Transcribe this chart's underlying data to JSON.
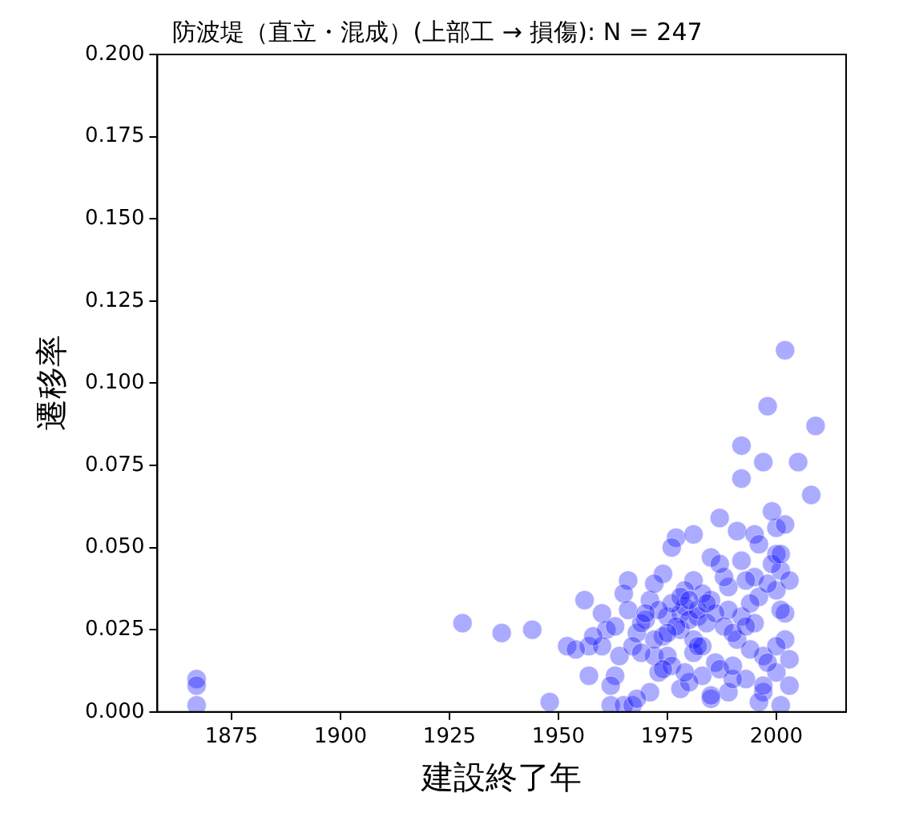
{
  "chart_data": {
    "type": "scatter",
    "title": "防波堤（直立・混成）(上部工 → 損傷): N = 247",
    "xlabel": "建設終了年",
    "ylabel": "遷移率",
    "marker": "circle",
    "grid": false,
    "xlim": [
      1858,
      2016
    ],
    "xticks": [
      1875,
      1900,
      1925,
      1950,
      1975,
      2000
    ],
    "ylim": [
      0,
      0.2
    ],
    "yticks": [
      {
        "value": 0,
        "label": "0.000"
      },
      {
        "value": 0.025,
        "label": "0.025"
      },
      {
        "value": 0.05,
        "label": "0.050"
      },
      {
        "value": 0.075,
        "label": "0.075"
      },
      {
        "value": 0.1,
        "label": "0.100"
      },
      {
        "value": 0.125,
        "label": "0.125"
      },
      {
        "value": 0.15,
        "label": "0.150"
      },
      {
        "value": 0.175,
        "label": "0.175"
      },
      {
        "value": 0.2,
        "label": "0.200"
      }
    ],
    "series": [
      {
        "color": "#0000ff",
        "x": [
          1867,
          1867,
          1867,
          1928,
          1937,
          1944,
          1956,
          2002,
          2009,
          1998,
          1992,
          1997,
          2005,
          1992,
          2008,
          1977,
          1981,
          1976,
          1987,
          1991,
          1995,
          2000,
          2002,
          1992,
          1995,
          2000,
          2001,
          2000,
          2002,
          1996,
          1992,
          1974,
          1966,
          1960,
          1965,
          1971,
          1975,
          1978,
          1982,
          1985,
          1989,
          1981,
          1978,
          1974,
          1961,
          1957,
          1952,
          1960,
          1964,
          1968,
          1972,
          1975,
          1981,
          1986,
          1991,
          1997,
          2002,
          1957,
          1963,
          1971,
          1978,
          1983,
          1985,
          1989,
          1997,
          2000,
          1948,
          1962,
          1965,
          1967,
          2001,
          1979,
          1980,
          1982,
          1976,
          1984,
          1973,
          1970,
          1983,
          1986,
          1988,
          1990,
          1994,
          1998,
          1999,
          2003,
          1979,
          1981,
          1983,
          1977,
          1972,
          1969,
          1967,
          1954,
          1958,
          1963,
          1966,
          1969,
          1973,
          1976,
          1980,
          1987,
          1993,
          1995,
          1998,
          2001,
          2003,
          1962,
          1968,
          1974,
          1979,
          1985,
          1990,
          1996,
          2000,
          1989,
          1993,
          1996,
          1999,
          2001,
          1985,
          1988,
          1984,
          1978,
          1975,
          1980,
          1982,
          1972,
          1970,
          1987,
          1994,
          1997,
          2003,
          1993,
          1990
        ],
        "values": [
          0.01,
          0.008,
          0.002,
          0.027,
          0.024,
          0.025,
          0.034,
          0.11,
          0.087,
          0.093,
          0.081,
          0.076,
          0.076,
          0.071,
          0.066,
          0.053,
          0.054,
          0.05,
          0.059,
          0.055,
          0.054,
          0.056,
          0.057,
          0.046,
          0.041,
          0.048,
          0.043,
          0.037,
          0.03,
          0.035,
          0.029,
          0.042,
          0.04,
          0.03,
          0.036,
          0.034,
          0.029,
          0.03,
          0.029,
          0.034,
          0.031,
          0.04,
          0.025,
          0.023,
          0.025,
          0.02,
          0.02,
          0.02,
          0.017,
          0.024,
          0.017,
          0.017,
          0.018,
          0.015,
          0.022,
          0.017,
          0.022,
          0.011,
          0.011,
          0.006,
          0.007,
          0.011,
          0.004,
          0.006,
          0.006,
          0.012,
          0.003,
          0.002,
          0.002,
          0.002,
          0.002,
          0.032,
          0.028,
          0.031,
          0.033,
          0.027,
          0.031,
          0.028,
          0.036,
          0.03,
          0.026,
          0.024,
          0.033,
          0.039,
          0.045,
          0.04,
          0.037,
          0.022,
          0.02,
          0.026,
          0.022,
          0.027,
          0.02,
          0.019,
          0.023,
          0.026,
          0.031,
          0.018,
          0.012,
          0.014,
          0.009,
          0.013,
          0.01,
          0.027,
          0.015,
          0.031,
          0.008,
          0.008,
          0.004,
          0.013,
          0.012,
          0.005,
          0.01,
          0.003,
          0.02,
          0.038,
          0.04,
          0.051,
          0.061,
          0.048,
          0.047,
          0.041,
          0.033,
          0.035,
          0.024,
          0.034,
          0.02,
          0.039,
          0.03,
          0.045,
          0.019,
          0.008,
          0.016,
          0.026,
          0.014
        ]
      }
    ]
  }
}
